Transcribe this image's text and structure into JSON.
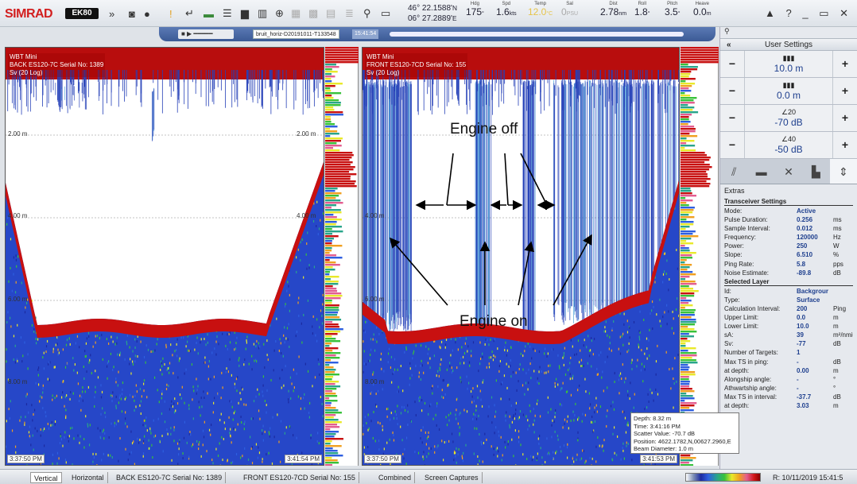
{
  "toolbar": {
    "brand": "SIMRAD",
    "model": "EK80",
    "lat": "46° 22.1588'",
    "lat_suffix": "N",
    "lon": "06° 27.2889'",
    "lon_suffix": "E",
    "readouts": [
      {
        "label": "Hdg",
        "value": "175",
        "unit": "°"
      },
      {
        "label": "Spd",
        "value": "1.6",
        "unit": "kts"
      },
      {
        "label": "Temp",
        "value": "12.0",
        "unit": "°C"
      },
      {
        "label": "Sal",
        "value": "0",
        "unit": "PSU"
      },
      {
        "label": "Dist",
        "value": "2.78",
        "unit": "nm"
      },
      {
        "label": "Roll",
        "value": "1.8",
        "unit": "°"
      },
      {
        "label": "Pitch",
        "value": "3.5",
        "unit": "°"
      },
      {
        "label": "Heave",
        "value": "0.0",
        "unit": "m"
      }
    ],
    "window_controls": "▲ ? _ ▭ ✕"
  },
  "replay": {
    "file": "bruit_horiz-D20191011-T133548",
    "time": "15:41:54"
  },
  "left_echogram": {
    "line1": "WBT Mini",
    "line2": "BACK ES120-7C Serial No: 1389",
    "line3": "Sv (20 Log)",
    "depth_labels": [
      "2.00 m",
      "4.00 m",
      "6.00 m",
      "8.00 m"
    ],
    "time_start": "3:37:50 PM",
    "time_end": "3:41:54 PM"
  },
  "right_echogram": {
    "line1": "WBT Mini",
    "line2": "FRONT ES120-7CD Serial No: 155",
    "line3": "Sv (20 Log)",
    "depth_labels": [
      "2.00 m",
      "4.00 m",
      "6.00 m",
      "8.00 m"
    ],
    "time_start": "3:37:50 PM",
    "time_end": "3:41:53 PM"
  },
  "annotations": {
    "engine_off": "Engine off",
    "engine_on": "Engine on"
  },
  "tooltip": {
    "depth": "Depth: 8.32 m",
    "time": "Time: 3:41:16 PM",
    "scatter": "Scatter Value: -70.7 dB",
    "position": "Position: 4622.1782,N,00627.2960,E",
    "beam": "Beam Diameter: 1.0 m"
  },
  "side": {
    "header": "User Settings",
    "controls": [
      {
        "value": "10.0 m",
        "icon": "range-icon"
      },
      {
        "value": "0.0 m",
        "icon": "start-range-icon"
      },
      {
        "value": "-70 dB",
        "icon": "gain-icon",
        "top": "20"
      },
      {
        "value": "-50 dB",
        "icon": "tvg-icon",
        "top": "40"
      }
    ],
    "extras_title": "Extras",
    "transceiver_title": "Transceiver Settings",
    "transceiver": [
      {
        "k": "Mode:",
        "v": "Active",
        "u": ""
      },
      {
        "k": "Pulse Duration:",
        "v": "0.256",
        "u": "ms"
      },
      {
        "k": "Sample Interval:",
        "v": "0.012",
        "u": "ms"
      },
      {
        "k": "Frequency:",
        "v": "120000",
        "u": "Hz"
      },
      {
        "k": "Power:",
        "v": "250",
        "u": "W"
      },
      {
        "k": "Slope:",
        "v": "6.510",
        "u": "%"
      },
      {
        "k": "Ping Rate:",
        "v": "5.8",
        "u": "pps"
      },
      {
        "k": "Noise Estimate:",
        "v": "-89.8",
        "u": "dB"
      }
    ],
    "layer_title": "Selected Layer",
    "layer": [
      {
        "k": "Id:",
        "v": "Backgrour",
        "u": ""
      },
      {
        "k": "Type:",
        "v": "Surface",
        "u": ""
      },
      {
        "k": "Calculation Interval:",
        "v": "200",
        "u": "Ping"
      },
      {
        "k": "Upper Limit:",
        "v": "0.0",
        "u": "m"
      },
      {
        "k": "Lower Limit:",
        "v": "10.0",
        "u": "m"
      },
      {
        "k": "sA:",
        "v": "39",
        "u": "m²/nmi²"
      },
      {
        "k": "Sv:",
        "v": "-77",
        "u": "dB"
      },
      {
        "k": "Number of Targets:",
        "v": "1",
        "u": ""
      },
      {
        "k": "Max TS in ping:",
        "v": "-",
        "u": "dB"
      },
      {
        "k": "at depth:",
        "v": "0.00",
        "u": "m"
      },
      {
        "k": "Alongship angle:",
        "v": "-",
        "u": "°"
      },
      {
        "k": "Athwartship angle:",
        "v": "-",
        "u": "°"
      },
      {
        "k": "Max TS in interval:",
        "v": "-37.7",
        "u": "dB"
      },
      {
        "k": "at depth:",
        "v": "3.03",
        "u": "m"
      }
    ]
  },
  "bottom": {
    "tabs": [
      "Vertical",
      "Horizontal",
      "BACK ES120-7C Serial No: 1389",
      "FRONT ES120-7CD Serial No: 155",
      "Combined",
      "Screen Captures"
    ],
    "status": "R: 10/11/2019   15:41:5"
  }
}
